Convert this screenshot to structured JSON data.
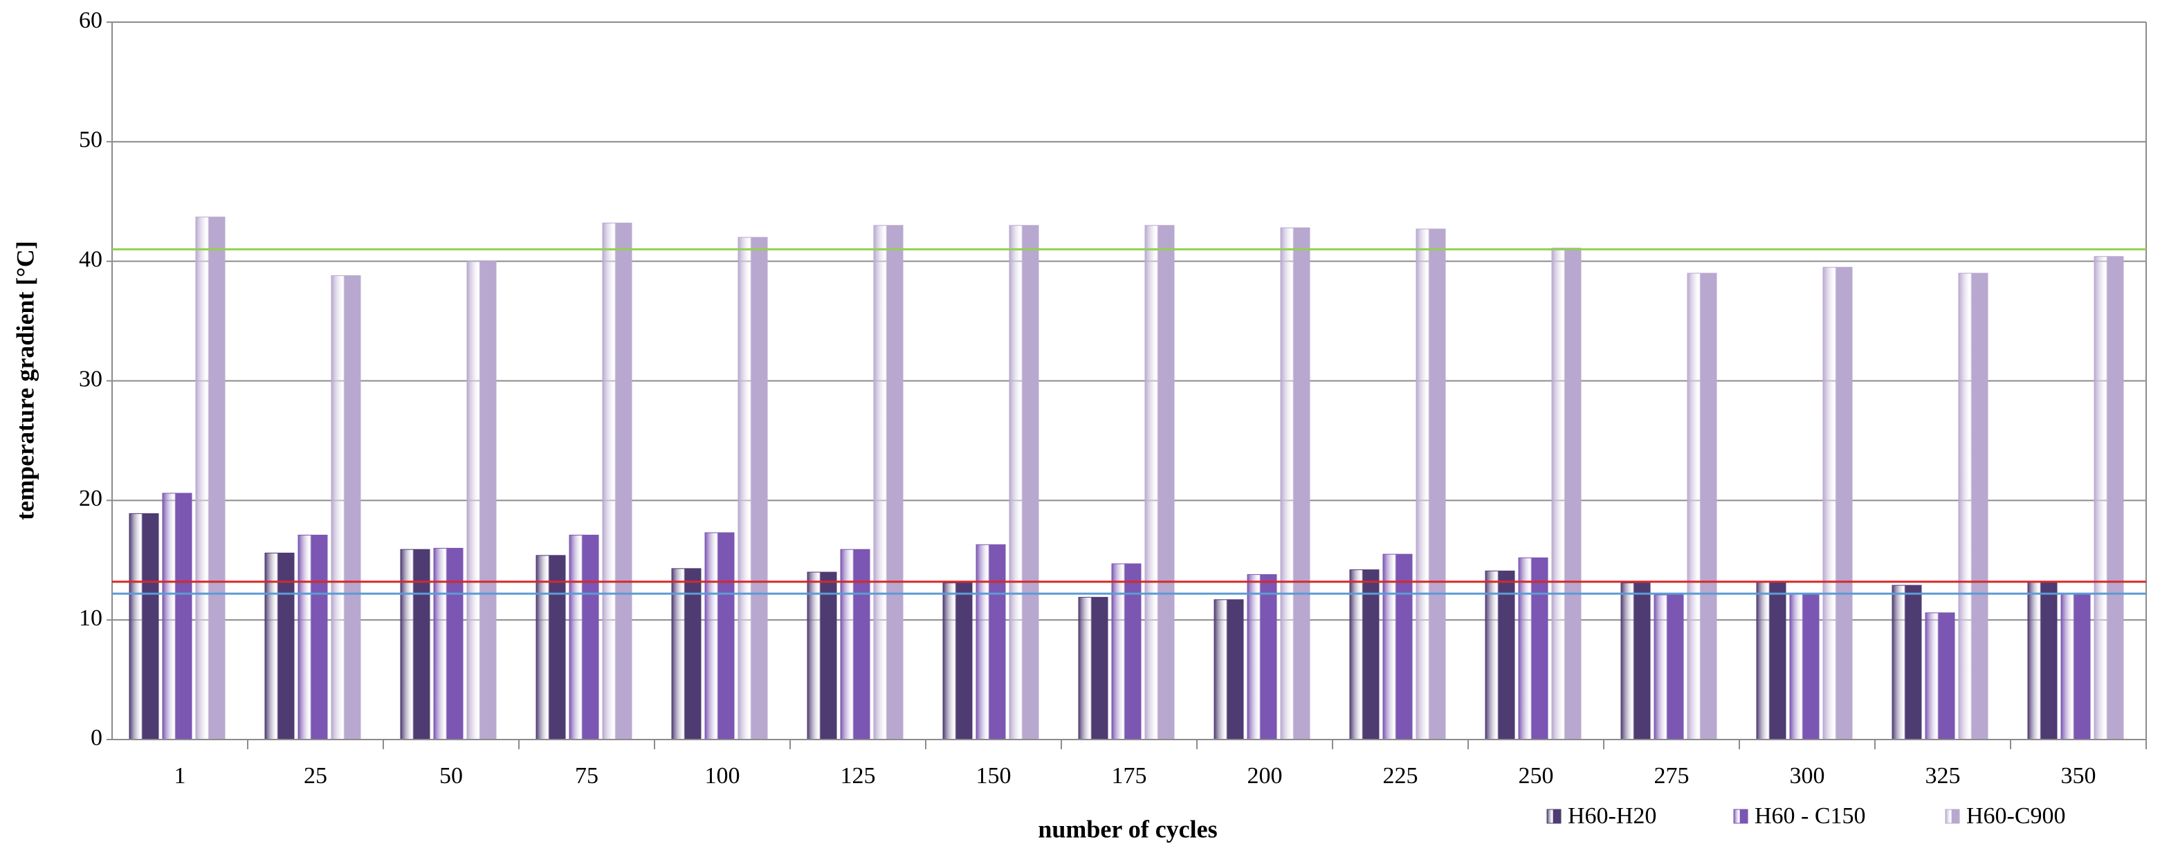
{
  "chart_data": {
    "type": "bar",
    "x_label": "number of cycles",
    "y_label": "temperature gradient [°C]",
    "categories": [
      "1",
      "25",
      "50",
      "75",
      "100",
      "125",
      "150",
      "175",
      "200",
      "225",
      "250",
      "275",
      "300",
      "325",
      "350"
    ],
    "series": [
      {
        "name": "H60-H20",
        "color": "#4e3b72",
        "values": [
          18.9,
          15.6,
          15.9,
          15.4,
          14.3,
          14.0,
          13.1,
          11.9,
          11.7,
          14.2,
          14.1,
          13.1,
          13.2,
          12.9,
          13.2
        ]
      },
      {
        "name": "H60 - C150",
        "color": "#7b56b2",
        "values": [
          20.6,
          17.1,
          16.0,
          17.1,
          17.3,
          15.9,
          16.3,
          14.7,
          13.8,
          15.5,
          15.2,
          12.1,
          12.2,
          10.6,
          12.2
        ]
      },
      {
        "name": "H60-C900",
        "color": "#b8a8cf",
        "values": [
          43.7,
          38.8,
          40.0,
          43.2,
          42.0,
          43.0,
          43.0,
          43.0,
          42.8,
          42.7,
          41.1,
          39.0,
          39.5,
          39.0,
          40.4
        ]
      }
    ],
    "reference_lines": [
      {
        "value": 41.0,
        "color": "#92d050"
      },
      {
        "value": 13.2,
        "color": "#d62828"
      },
      {
        "value": 12.2,
        "color": "#5b9bd5"
      }
    ],
    "ylim": [
      0,
      60
    ],
    "yticks": [
      0,
      10,
      20,
      30,
      40,
      50,
      60
    ],
    "grid": true,
    "legend": "bottom-right"
  }
}
